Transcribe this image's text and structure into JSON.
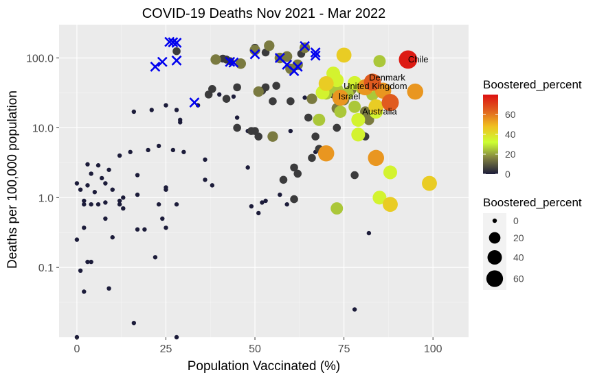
{
  "chart_data": {
    "type": "scatter",
    "title": "COVID-19 Deaths Nov 2021 - Mar 2022",
    "xlabel": "Population Vaccinated (%)",
    "ylabel": "Deaths per 100,000 population",
    "xlim": [
      -5,
      110
    ],
    "ylim": [
      0.01,
      300
    ],
    "y_scale": "log10",
    "x_ticks": [
      0,
      25,
      50,
      75,
      100
    ],
    "x_tick_labels": [
      "0",
      "25",
      "50",
      "75",
      "100"
    ],
    "y_ticks": [
      0.1,
      1,
      10,
      100
    ],
    "y_tick_labels": [
      "0.1",
      "1.0",
      "10.0",
      "100.0"
    ],
    "grid": true,
    "legends": [
      {
        "type": "color",
        "title": "Boostered_percent",
        "placement": "right",
        "ticks": [
          0,
          20,
          40,
          60
        ],
        "tick_labels": [
          "0",
          "20",
          "40",
          "60"
        ],
        "range": [
          0,
          80
        ],
        "colors": [
          "#1c1c3a",
          "#808040",
          "#ccff33",
          "#f0c020",
          "#e06020",
          "#dd1111"
        ]
      },
      {
        "type": "size",
        "title": "Boostered_percent",
        "placement": "right",
        "values": [
          0,
          20,
          40,
          60
        ],
        "labels": [
          "0",
          "20",
          "40",
          "60"
        ]
      }
    ],
    "points": [
      {
        "x": 0,
        "y": 1.6,
        "b": 0
      },
      {
        "x": 0,
        "y": 0.25,
        "b": 0
      },
      {
        "x": 0,
        "y": 0.01,
        "b": 0
      },
      {
        "x": 1,
        "y": 1.3,
        "b": 0
      },
      {
        "x": 1,
        "y": 0.09,
        "b": 0
      },
      {
        "x": 2,
        "y": 0.9,
        "b": 0
      },
      {
        "x": 2,
        "y": 0.8,
        "b": 0
      },
      {
        "x": 2,
        "y": 0.37,
        "b": 0
      },
      {
        "x": 2,
        "y": 0.045,
        "b": 0
      },
      {
        "x": 3,
        "y": 3.0,
        "b": 0
      },
      {
        "x": 3,
        "y": 1.5,
        "b": 0
      },
      {
        "x": 3,
        "y": 0.12,
        "b": 0
      },
      {
        "x": 4,
        "y": 2.2,
        "b": 0
      },
      {
        "x": 4,
        "y": 0.8,
        "b": 0
      },
      {
        "x": 4,
        "y": 0.12,
        "b": 0
      },
      {
        "x": 5,
        "y": 1.2,
        "b": 0
      },
      {
        "x": 6,
        "y": 2.9,
        "b": 0
      },
      {
        "x": 6,
        "y": 0.8,
        "b": 0
      },
      {
        "x": 7,
        "y": 1.9,
        "b": 0
      },
      {
        "x": 8,
        "y": 1.6,
        "b": 0
      },
      {
        "x": 8,
        "y": 0.85,
        "b": 0
      },
      {
        "x": 8,
        "y": 0.5,
        "b": 0
      },
      {
        "x": 9,
        "y": 2.5,
        "b": 0
      },
      {
        "x": 9,
        "y": 0.05,
        "b": 0
      },
      {
        "x": 10,
        "y": 1.3,
        "b": 0
      },
      {
        "x": 10,
        "y": 0.27,
        "b": 0
      },
      {
        "x": 12,
        "y": 4.0,
        "b": 0
      },
      {
        "x": 12,
        "y": 0.9,
        "b": 0
      },
      {
        "x": 12,
        "y": 0.8,
        "b": 0
      },
      {
        "x": 13,
        "y": 1.0,
        "b": 0
      },
      {
        "x": 13,
        "y": 0.7,
        "b": 0
      },
      {
        "x": 15,
        "y": 4.5,
        "b": 0
      },
      {
        "x": 16,
        "y": 17.0,
        "b": 0
      },
      {
        "x": 16,
        "y": 0.016,
        "b": 0
      },
      {
        "x": 17,
        "y": 2.1,
        "b": 0
      },
      {
        "x": 17,
        "y": 1.1,
        "b": 0
      },
      {
        "x": 17,
        "y": 0.35,
        "b": 0
      },
      {
        "x": 19,
        "y": 0.35,
        "b": 0
      },
      {
        "x": 20,
        "y": 4.8,
        "b": 0
      },
      {
        "x": 21,
        "y": 18.0,
        "b": 0
      },
      {
        "x": 22,
        "y": 0.14,
        "b": 0
      },
      {
        "x": 23,
        "y": 5.5,
        "b": 0
      },
      {
        "x": 23,
        "y": 0.8,
        "b": 0
      },
      {
        "x": 24,
        "y": 0.5,
        "b": 0
      },
      {
        "x": 25,
        "y": 21.0,
        "b": 0
      },
      {
        "x": 25,
        "y": 1.4,
        "b": 0
      },
      {
        "x": 25,
        "y": 1.3,
        "b": 0
      },
      {
        "x": 25,
        "y": 0.37,
        "b": 0
      },
      {
        "x": 27,
        "y": 4.8,
        "b": 0
      },
      {
        "x": 28,
        "y": 18.0,
        "b": 0
      },
      {
        "x": 28,
        "y": 0.8,
        "b": 0
      },
      {
        "x": 28,
        "y": 0.01,
        "b": 0
      },
      {
        "x": 29,
        "y": 13.0,
        "b": 0
      },
      {
        "x": 29,
        "y": 12.0,
        "b": 0
      },
      {
        "x": 30,
        "y": 4.5,
        "b": 0
      },
      {
        "x": 34,
        "y": 21.0,
        "b": 0
      },
      {
        "x": 36,
        "y": 3.5,
        "b": 0
      },
      {
        "x": 36,
        "y": 1.8,
        "b": 0
      },
      {
        "x": 38,
        "y": 1.5,
        "b": 0
      },
      {
        "x": 40,
        "y": 30.0,
        "b": 0
      },
      {
        "x": 44,
        "y": 28.0,
        "b": 0
      },
      {
        "x": 45,
        "y": 14.0,
        "b": 0
      },
      {
        "x": 48,
        "y": 2.7,
        "b": 0
      },
      {
        "x": 48,
        "y": 9.0,
        "b": 0
      },
      {
        "x": 49,
        "y": 0.75,
        "b": 0
      },
      {
        "x": 51,
        "y": 0.6,
        "b": 0
      },
      {
        "x": 52,
        "y": 0.85,
        "b": 0
      },
      {
        "x": 53,
        "y": 0.9,
        "b": 0
      },
      {
        "x": 57,
        "y": 1.1,
        "b": 0
      },
      {
        "x": 59,
        "y": 0.8,
        "b": 0
      },
      {
        "x": 60,
        "y": 9.0,
        "b": 0
      },
      {
        "x": 64,
        "y": 27.0,
        "b": 0
      },
      {
        "x": 67,
        "y": 4.5,
        "b": 0
      },
      {
        "x": 82,
        "y": 0.31,
        "b": 0
      },
      {
        "x": 78,
        "y": 0.025,
        "b": 0
      },
      {
        "x": 28,
        "y": 125.0,
        "b": 5
      },
      {
        "x": 37,
        "y": 30.0,
        "b": 5
      },
      {
        "x": 38,
        "y": 36.0,
        "b": 5
      },
      {
        "x": 41,
        "y": 98.0,
        "b": 5
      },
      {
        "x": 42,
        "y": 95.0,
        "b": 5
      },
      {
        "x": 42,
        "y": 26.0,
        "b": 5
      },
      {
        "x": 43,
        "y": 90.0,
        "b": 5
      },
      {
        "x": 45,
        "y": 38.0,
        "b": 5
      },
      {
        "x": 45,
        "y": 10.0,
        "b": 5
      },
      {
        "x": 49,
        "y": 9.0,
        "b": 5
      },
      {
        "x": 50,
        "y": 9.0,
        "b": 5
      },
      {
        "x": 50,
        "y": 140.0,
        "b": 5
      },
      {
        "x": 51,
        "y": 7.5,
        "b": 5
      },
      {
        "x": 52,
        "y": 34.0,
        "b": 5
      },
      {
        "x": 53,
        "y": 38.0,
        "b": 5
      },
      {
        "x": 53,
        "y": 120.0,
        "b": 5
      },
      {
        "x": 55,
        "y": 24.0,
        "b": 5
      },
      {
        "x": 56,
        "y": 40.0,
        "b": 5
      },
      {
        "x": 58,
        "y": 1.8,
        "b": 5
      },
      {
        "x": 60,
        "y": 24.0,
        "b": 5
      },
      {
        "x": 61,
        "y": 2.7,
        "b": 5
      },
      {
        "x": 61,
        "y": 0.95,
        "b": 5
      },
      {
        "x": 62,
        "y": 2.2,
        "b": 5
      },
      {
        "x": 63,
        "y": 115.0,
        "b": 5
      },
      {
        "x": 65,
        "y": 14.0,
        "b": 5
      },
      {
        "x": 66,
        "y": 3.7,
        "b": 5
      },
      {
        "x": 67,
        "y": 7.5,
        "b": 5
      },
      {
        "x": 68,
        "y": 5.0,
        "b": 5
      },
      {
        "x": 72,
        "y": 30.0,
        "b": 5
      },
      {
        "x": 73,
        "y": 10.0,
        "b": 5
      },
      {
        "x": 78,
        "y": 2.1,
        "b": 5
      },
      {
        "x": 80,
        "y": 8.0,
        "b": 5
      },
      {
        "x": 81,
        "y": 7.5,
        "b": 5
      },
      {
        "x": 88,
        "y": 2.3,
        "b": 5
      },
      {
        "x": 39,
        "y": 95.0,
        "b": 15
      },
      {
        "x": 46,
        "y": 83.0,
        "b": 15
      },
      {
        "x": 50,
        "y": 130.0,
        "b": 15
      },
      {
        "x": 51,
        "y": 33.0,
        "b": 15
      },
      {
        "x": 54,
        "y": 150.0,
        "b": 15
      },
      {
        "x": 55,
        "y": 7.5,
        "b": 15
      },
      {
        "x": 57,
        "y": 100.0,
        "b": 15
      },
      {
        "x": 59,
        "y": 105.0,
        "b": 15
      },
      {
        "x": 60,
        "y": 70.0,
        "b": 15
      },
      {
        "x": 62,
        "y": 80.0,
        "b": 15
      },
      {
        "x": 64,
        "y": 140.0,
        "b": 15
      },
      {
        "x": 66,
        "y": 26.0,
        "b": 15
      },
      {
        "x": 73,
        "y": 19.0,
        "b": 15
      },
      {
        "x": 75,
        "y": 25.0,
        "b": 15
      },
      {
        "x": 77,
        "y": 35.0,
        "b": 15
      },
      {
        "x": 81,
        "y": 17.0,
        "b": 15
      },
      {
        "x": 82,
        "y": 13.0,
        "b": 15
      },
      {
        "x": 68,
        "y": 13.0,
        "b": 25
      },
      {
        "x": 70,
        "y": 31.0,
        "b": 25
      },
      {
        "x": 72,
        "y": 42.0,
        "b": 25
      },
      {
        "x": 73,
        "y": 36.0,
        "b": 25
      },
      {
        "x": 73,
        "y": 0.7,
        "b": 25
      },
      {
        "x": 74,
        "y": 17.0,
        "b": 25
      },
      {
        "x": 76,
        "y": 31.0,
        "b": 25
      },
      {
        "x": 78,
        "y": 20.0,
        "b": 25
      },
      {
        "x": 80,
        "y": 37.0,
        "b": 25
      },
      {
        "x": 83,
        "y": 30.0,
        "b": 25
      },
      {
        "x": 85,
        "y": 90.0,
        "b": 25
      },
      {
        "x": 88,
        "y": 25.0,
        "b": 25
      },
      {
        "x": 69,
        "y": 32.0,
        "b": 35
      },
      {
        "x": 72,
        "y": 60.0,
        "b": 35
      },
      {
        "x": 73,
        "y": 48.0,
        "b": 35
      },
      {
        "x": 78,
        "y": 44.0,
        "b": 35
      },
      {
        "x": 79,
        "y": 13.0,
        "b": 35
      },
      {
        "x": 79,
        "y": 8.0,
        "b": 35
      },
      {
        "x": 82,
        "y": 40.0,
        "b": 35
      },
      {
        "x": 84,
        "y": 17.0,
        "b": 35
      },
      {
        "x": 85,
        "y": 1.0,
        "b": 35
      },
      {
        "x": 88,
        "y": 2.3,
        "b": 35
      },
      {
        "x": 70,
        "y": 43.0,
        "b": 45
      },
      {
        "x": 75,
        "y": 110.0,
        "b": 45
      },
      {
        "x": 88,
        "y": 0.8,
        "b": 45
      },
      {
        "x": 99,
        "y": 1.6,
        "b": 45
      },
      {
        "x": 84,
        "y": 20.0,
        "b": 45
      },
      {
        "x": 74,
        "y": 27.0,
        "b": 55
      },
      {
        "x": 70,
        "y": 4.3,
        "b": 55
      },
      {
        "x": 84,
        "y": 3.7,
        "b": 55
      },
      {
        "x": 86,
        "y": 34.0,
        "b": 55
      },
      {
        "x": 95,
        "y": 33.0,
        "b": 55
      },
      {
        "x": 81,
        "y": 38.0,
        "b": 55
      },
      {
        "x": 83,
        "y": 45.0,
        "b": 65
      },
      {
        "x": 88,
        "y": 23.0,
        "b": 65
      },
      {
        "x": 93,
        "y": 95.0,
        "b": 78
      }
    ],
    "markers": {
      "shape": "x",
      "color": "#0000ee",
      "points": [
        {
          "x": 22,
          "y": 75.0
        },
        {
          "x": 24,
          "y": 88.0
        },
        {
          "x": 26,
          "y": 170.0
        },
        {
          "x": 27,
          "y": 168.0
        },
        {
          "x": 28,
          "y": 165.0
        },
        {
          "x": 28,
          "y": 92.0
        },
        {
          "x": 33,
          "y": 23.0
        },
        {
          "x": 43,
          "y": 88.0
        },
        {
          "x": 44,
          "y": 86.0
        },
        {
          "x": 50,
          "y": 113.0
        },
        {
          "x": 57,
          "y": 100.0
        },
        {
          "x": 59,
          "y": 80.0
        },
        {
          "x": 61,
          "y": 65.0
        },
        {
          "x": 62,
          "y": 75.0
        },
        {
          "x": 64,
          "y": 148.0
        },
        {
          "x": 67,
          "y": 120.0
        },
        {
          "x": 67,
          "y": 108.0
        }
      ]
    },
    "annotations": [
      {
        "text": "Chile",
        "x": 93,
        "y": 95.0
      },
      {
        "text": "Denmark",
        "x": 83,
        "y": 52.0
      },
      {
        "text": "United Kingdom",
        "x": 83,
        "y": 39.0
      },
      {
        "text": "Israel",
        "x": 75,
        "y": 28.0
      },
      {
        "text": "Australia",
        "x": 89,
        "y": 17.0
      }
    ]
  }
}
